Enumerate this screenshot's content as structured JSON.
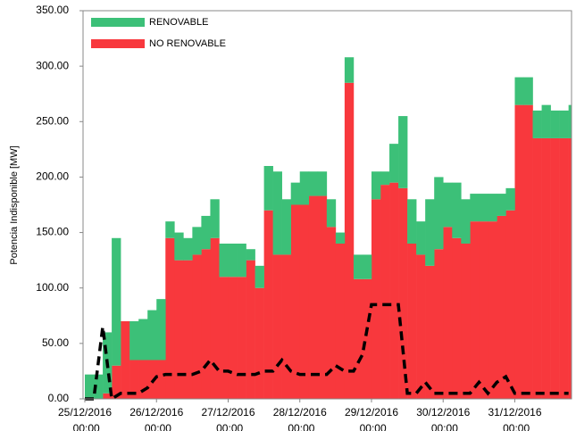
{
  "chart_data": {
    "type": "stacked_step_area",
    "y_label": "Potencia Indisponible [MW]",
    "x": [
      0,
      3,
      6,
      9,
      12,
      15,
      18,
      21,
      24,
      27,
      30,
      33,
      36,
      39,
      42,
      45,
      48,
      51,
      54,
      57,
      60,
      63,
      66,
      69,
      72,
      75,
      78,
      81,
      84,
      87,
      90,
      93,
      96,
      99,
      102,
      105,
      108,
      111,
      114,
      117,
      120,
      123,
      126,
      129,
      132,
      135,
      138,
      141,
      144,
      147,
      150,
      153,
      156,
      159,
      162
    ],
    "xlim": [
      0,
      163
    ],
    "xticks": [
      {
        "value": 0,
        "label": "25/12/2016 00:00"
      },
      {
        "value": 24,
        "label": "26/12/2016 00:00"
      },
      {
        "value": 48,
        "label": "27/12/2016 00:00"
      },
      {
        "value": 72,
        "label": "28/12/2016 00:00"
      },
      {
        "value": 96,
        "label": "29/12/2016 00:00"
      },
      {
        "value": 120,
        "label": "30/12/2016 00:00"
      },
      {
        "value": 144,
        "label": "31/12/2016 00:00"
      }
    ],
    "ylim": [
      0,
      350
    ],
    "yticks": [
      {
        "value": 0,
        "label": "0.00"
      },
      {
        "value": 50,
        "label": "50.00"
      },
      {
        "value": 100,
        "label": "100.00"
      },
      {
        "value": 150,
        "label": "150.00"
      },
      {
        "value": 200,
        "label": "200.00"
      },
      {
        "value": 250,
        "label": "250.00"
      },
      {
        "value": 300,
        "label": "300.00"
      },
      {
        "value": 350,
        "label": "350.00"
      }
    ],
    "legend": "top-left",
    "series": [
      {
        "name": "NO RENOVABLE",
        "color": "#f8383d",
        "values": [
          0,
          0,
          5,
          30,
          70,
          35,
          35,
          35,
          35,
          145,
          125,
          125,
          130,
          135,
          145,
          110,
          110,
          110,
          125,
          100,
          170,
          130,
          130,
          175,
          175,
          183,
          183,
          155,
          140,
          285,
          108,
          108,
          180,
          193,
          195,
          190,
          140,
          130,
          120,
          135,
          155,
          145,
          140,
          160,
          160,
          160,
          165,
          170,
          265,
          265,
          235,
          235,
          235,
          235,
          235
        ]
      },
      {
        "name": "RENOVABLE",
        "color": "#3cc078",
        "values": [
          22,
          22,
          55,
          115,
          0,
          35,
          37,
          45,
          55,
          15,
          25,
          20,
          25,
          30,
          35,
          30,
          30,
          30,
          10,
          20,
          40,
          75,
          50,
          20,
          30,
          22,
          22,
          25,
          10,
          23,
          22,
          22,
          25,
          12,
          35,
          65,
          40,
          30,
          60,
          65,
          40,
          50,
          40,
          25,
          25,
          25,
          20,
          20,
          25,
          25,
          25,
          30,
          25,
          25,
          30
        ]
      },
      {
        "color": "#000000",
        "style": "dashed",
        "values": [
          0,
          0,
          65,
          0,
          5,
          5,
          5,
          10,
          20,
          22,
          22,
          22,
          22,
          25,
          35,
          25,
          25,
          22,
          22,
          22,
          25,
          25,
          35,
          25,
          22,
          22,
          22,
          22,
          30,
          25,
          25,
          40,
          85,
          85,
          85,
          85,
          5,
          5,
          15,
          5,
          5,
          5,
          5,
          5,
          15,
          5,
          15,
          20,
          5,
          5,
          5,
          5,
          5,
          5,
          5
        ]
      }
    ]
  }
}
